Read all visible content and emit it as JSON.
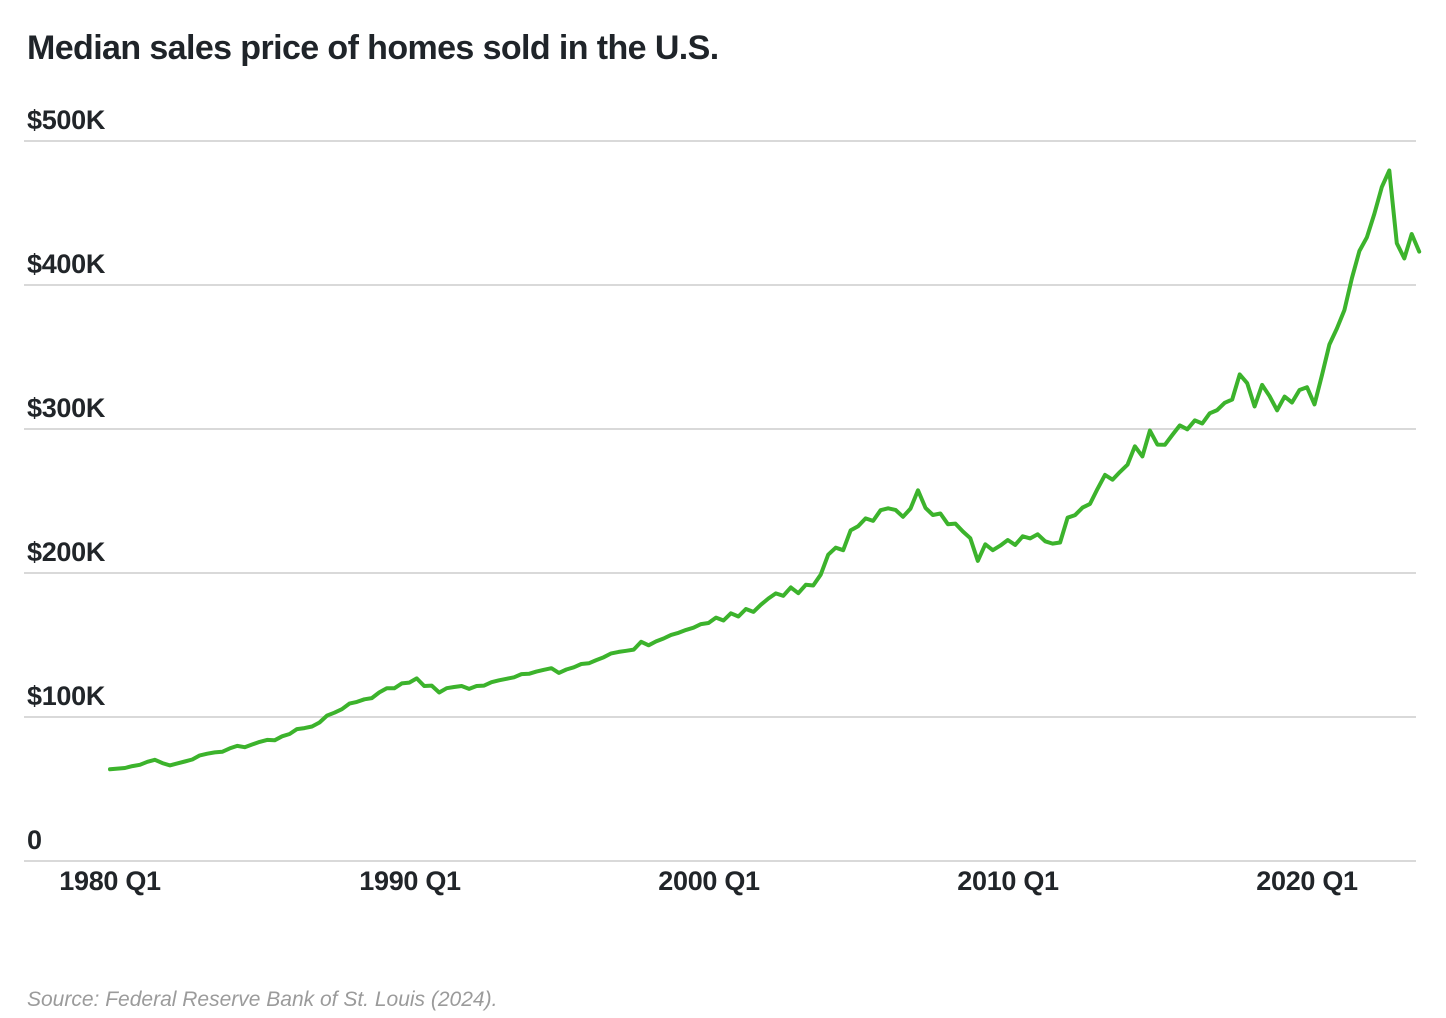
{
  "title": "Median sales price of homes sold in the U.S.",
  "source_note": "Source: Federal Reserve Bank of St. Louis (2024).",
  "chart_data": {
    "type": "line",
    "title": "Median sales price of homes sold in the U.S.",
    "series_name": "Median sales price",
    "frequency": "quarterly",
    "x_start": "1980 Q1",
    "x_end": "2023 Q4",
    "xlabel": "",
    "ylabel": "",
    "ylim": [
      0,
      500000
    ],
    "grid": "horizontal",
    "legend": "none",
    "line_color": "#3cb32c",
    "grid_color": "#d9d9d9",
    "y_ticks": [
      {
        "label": "$500K",
        "value": 500000
      },
      {
        "label": "$400K",
        "value": 400000
      },
      {
        "label": "$300K",
        "value": 300000
      },
      {
        "label": "$200K",
        "value": 200000
      },
      {
        "label": "$100K",
        "value": 100000
      },
      {
        "label": "0",
        "value": 0
      }
    ],
    "x_ticks": [
      {
        "label": "1980 Q1"
      },
      {
        "label": "1990 Q1"
      },
      {
        "label": "2000 Q1"
      },
      {
        "label": "2010 Q1"
      },
      {
        "label": "2020 Q1"
      }
    ],
    "values": [
      63700,
      64200,
      64600,
      65900,
      66800,
      68900,
      70300,
      68000,
      66400,
      67800,
      69100,
      70500,
      73300,
      74500,
      75400,
      75800,
      78200,
      79900,
      79000,
      80900,
      82700,
      84100,
      83800,
      86600,
      88200,
      91600,
      92300,
      93400,
      96200,
      101000,
      103000,
      105400,
      109300,
      110500,
      112300,
      113100,
      117100,
      120000,
      119900,
      123300,
      123900,
      126800,
      121500,
      121800,
      117000,
      120000,
      120800,
      121500,
      119500,
      121500,
      121800,
      124200,
      125500,
      126500,
      127600,
      129800,
      130000,
      131500,
      132800,
      133900,
      130600,
      133000,
      134500,
      136800,
      137300,
      139500,
      141500,
      144200,
      145200,
      146000,
      146800,
      152200,
      149800,
      152500,
      154500,
      157000,
      158500,
      160500,
      162000,
      164500,
      165300,
      169000,
      167000,
      172000,
      169800,
      175000,
      173000,
      178000,
      182300,
      185800,
      184200,
      190000,
      186000,
      191800,
      191300,
      198800,
      212700,
      217600,
      215800,
      229600,
      232500,
      237900,
      236200,
      243600,
      244900,
      243800,
      239000,
      244700,
      257400,
      245200,
      240300,
      241300,
      233900,
      234300,
      228800,
      224200,
      208400,
      219900,
      215800,
      219000,
      222900,
      219500,
      225500,
      224000,
      226900,
      222000,
      220400,
      221200,
      238400,
      240200,
      245400,
      248000,
      258400,
      268100,
      264800,
      270200,
      275200,
      288000,
      281000,
      298900,
      289200,
      289000,
      295800,
      302500,
      299800,
      306000,
      303800,
      310900,
      313100,
      318200,
      320500,
      337900,
      331800,
      315600,
      330600,
      322800,
      313000,
      322500,
      318400,
      327100,
      329000,
      317100,
      337500,
      358700,
      369800,
      382600,
      404700,
      423600,
      433100,
      449300,
      468000,
      479500,
      429000,
      418500,
      435400,
      423200
    ]
  }
}
